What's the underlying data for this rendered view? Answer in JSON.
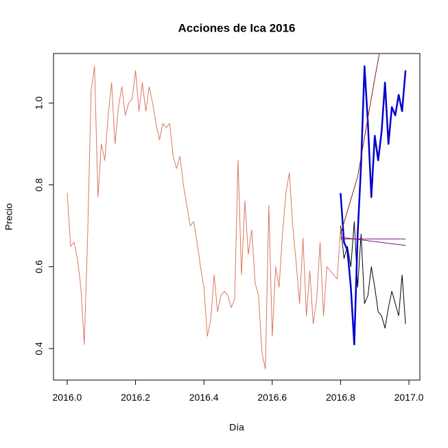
{
  "chart_data": {
    "type": "line",
    "title": "Acciones de Ica 2016",
    "xlabel": "Día",
    "ylabel": "Precio",
    "xlim": [
      2015.96,
      2017.032
    ],
    "ylim": [
      0.323,
      1.121
    ],
    "xticks": [
      {
        "value": 2016,
        "label": "2016.0"
      },
      2016.2,
      2016.4,
      2016.6,
      2016.8,
      {
        "value": 2017,
        "label": "2017.0"
      }
    ],
    "yticks": [
      0.4,
      0.6,
      0.8,
      {
        "value": 1,
        "label": "1.0"
      }
    ],
    "series": [
      {
        "color": "#d9775f",
        "width": 1,
        "x": [
          2016.0,
          2016.01,
          2016.02,
          2016.03,
          2016.04,
          2016.05,
          2016.06,
          2016.07,
          2016.08,
          2016.09,
          2016.1,
          2016.11,
          2016.12,
          2016.13,
          2016.14,
          2016.15,
          2016.16,
          2016.17,
          2016.18,
          2016.19,
          2016.2,
          2016.21,
          2016.22,
          2016.23,
          2016.24,
          2016.25,
          2016.26,
          2016.27,
          2016.28,
          2016.29,
          2016.3,
          2016.31,
          2016.32,
          2016.33,
          2016.34,
          2016.35,
          2016.36,
          2016.37,
          2016.38,
          2016.39,
          2016.4,
          2016.41,
          2016.42,
          2016.43,
          2016.44,
          2016.45,
          2016.46,
          2016.47,
          2016.48,
          2016.49,
          2016.5,
          2016.51,
          2016.52,
          2016.53,
          2016.54,
          2016.55,
          2016.56,
          2016.57,
          2016.58,
          2016.59,
          2016.6,
          2016.61,
          2016.62,
          2016.63,
          2016.64,
          2016.65,
          2016.66,
          2016.67,
          2016.68,
          2016.69,
          2016.7,
          2016.71,
          2016.72,
          2016.73,
          2016.74,
          2016.75,
          2016.76,
          2016.77,
          2016.78,
          2016.79,
          2016.8
        ],
        "values": [
          0.78,
          0.65,
          0.66,
          0.62,
          0.55,
          0.41,
          0.68,
          1.03,
          1.09,
          0.77,
          0.9,
          0.86,
          0.97,
          1.05,
          0.9,
          0.99,
          1.04,
          0.97,
          1.0,
          1.01,
          1.08,
          0.98,
          1.05,
          0.98,
          1.04,
          1.0,
          0.95,
          0.91,
          0.95,
          0.94,
          0.95,
          0.87,
          0.84,
          0.87,
          0.8,
          0.75,
          0.7,
          0.71,
          0.66,
          0.6,
          0.55,
          0.43,
          0.47,
          0.58,
          0.49,
          0.53,
          0.54,
          0.53,
          0.5,
          0.52,
          0.86,
          0.58,
          0.76,
          0.63,
          0.69,
          0.56,
          0.53,
          0.39,
          0.35,
          0.75,
          0.43,
          0.6,
          0.55,
          0.68,
          0.78,
          0.83,
          0.7,
          0.61,
          0.51,
          0.67,
          0.48,
          0.59,
          0.46,
          0.52,
          0.66,
          0.48,
          0.6,
          0.59,
          0.58,
          0.57,
          0.69
        ]
      },
      {
        "color": "#000000",
        "width": 1,
        "x": [
          2016.8,
          2016.81,
          2016.82,
          2016.83,
          2016.84,
          2016.85,
          2016.86,
          2016.87,
          2016.88,
          2016.89,
          2016.9,
          2016.91,
          2016.92,
          2016.93,
          2016.94,
          2016.95,
          2016.96,
          2016.97,
          2016.98,
          2016.99
        ],
        "values": [
          0.7,
          0.62,
          0.65,
          0.6,
          0.71,
          0.55,
          0.68,
          0.51,
          0.53,
          0.6,
          0.55,
          0.49,
          0.48,
          0.45,
          0.5,
          0.54,
          0.51,
          0.48,
          0.58,
          0.46
        ]
      },
      {
        "color": "#0000cd",
        "width": 2.5,
        "x": [
          2016.8,
          2016.81,
          2016.82,
          2016.83,
          2016.84,
          2016.85,
          2016.86,
          2016.87,
          2016.88,
          2016.89,
          2016.9,
          2016.91,
          2016.92,
          2016.93,
          2016.94,
          2016.95,
          2016.96,
          2016.97,
          2016.98,
          2016.99
        ],
        "values": [
          0.78,
          0.66,
          0.64,
          0.55,
          0.41,
          0.68,
          0.85,
          1.09,
          0.95,
          0.77,
          0.92,
          0.86,
          0.93,
          1.05,
          0.9,
          0.99,
          0.97,
          1.02,
          0.98,
          1.08
        ]
      },
      {
        "color": "#8b1a1a",
        "width": 1,
        "x": [
          2016.8,
          2016.85,
          2016.9,
          2016.92
        ],
        "values": [
          0.68,
          0.82,
          1.06,
          1.15
        ]
      },
      {
        "color": "#7b0e7b",
        "width": 1,
        "x": [
          2016.8,
          2016.99
        ],
        "values": [
          0.668,
          0.668
        ]
      },
      {
        "color": "#7b0e7b",
        "width": 1,
        "x": [
          2016.8,
          2016.99
        ],
        "values": [
          0.672,
          0.652
        ]
      }
    ]
  }
}
